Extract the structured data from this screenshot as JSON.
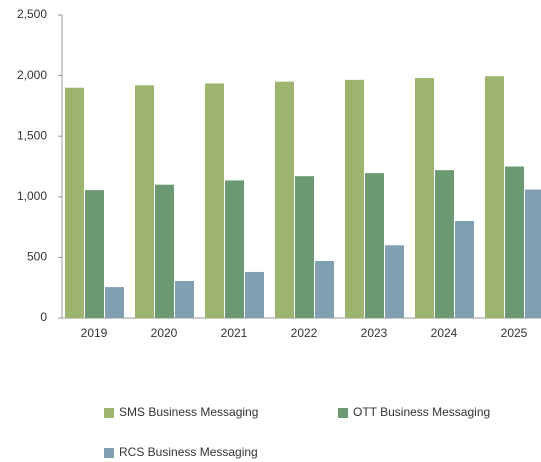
{
  "chart_data": {
    "type": "bar",
    "categories": [
      "2019",
      "2020",
      "2021",
      "2022",
      "2023",
      "2024",
      "2025"
    ],
    "series": [
      {
        "name": "SMS Business Messaging",
        "color": "#9db46f",
        "values": [
          1900,
          1920,
          1935,
          1950,
          1965,
          1980,
          1995
        ]
      },
      {
        "name": "OTT Business Messaging",
        "color": "#6b9a72",
        "values": [
          1055,
          1100,
          1135,
          1170,
          1195,
          1220,
          1250
        ]
      },
      {
        "name": "RCS Business Messaging",
        "color": "#809fb1",
        "values": [
          255,
          305,
          380,
          470,
          600,
          800,
          1060
        ]
      }
    ],
    "ylim": [
      0,
      2500
    ],
    "yticks": [
      0,
      500,
      {
        "value": 1000,
        "label": "1,000"
      },
      {
        "value": 1500,
        "label": "1,500"
      },
      {
        "value": 2000,
        "label": "2,000"
      },
      {
        "value": 2500,
        "label": "2,500"
      }
    ],
    "grid": false
  }
}
